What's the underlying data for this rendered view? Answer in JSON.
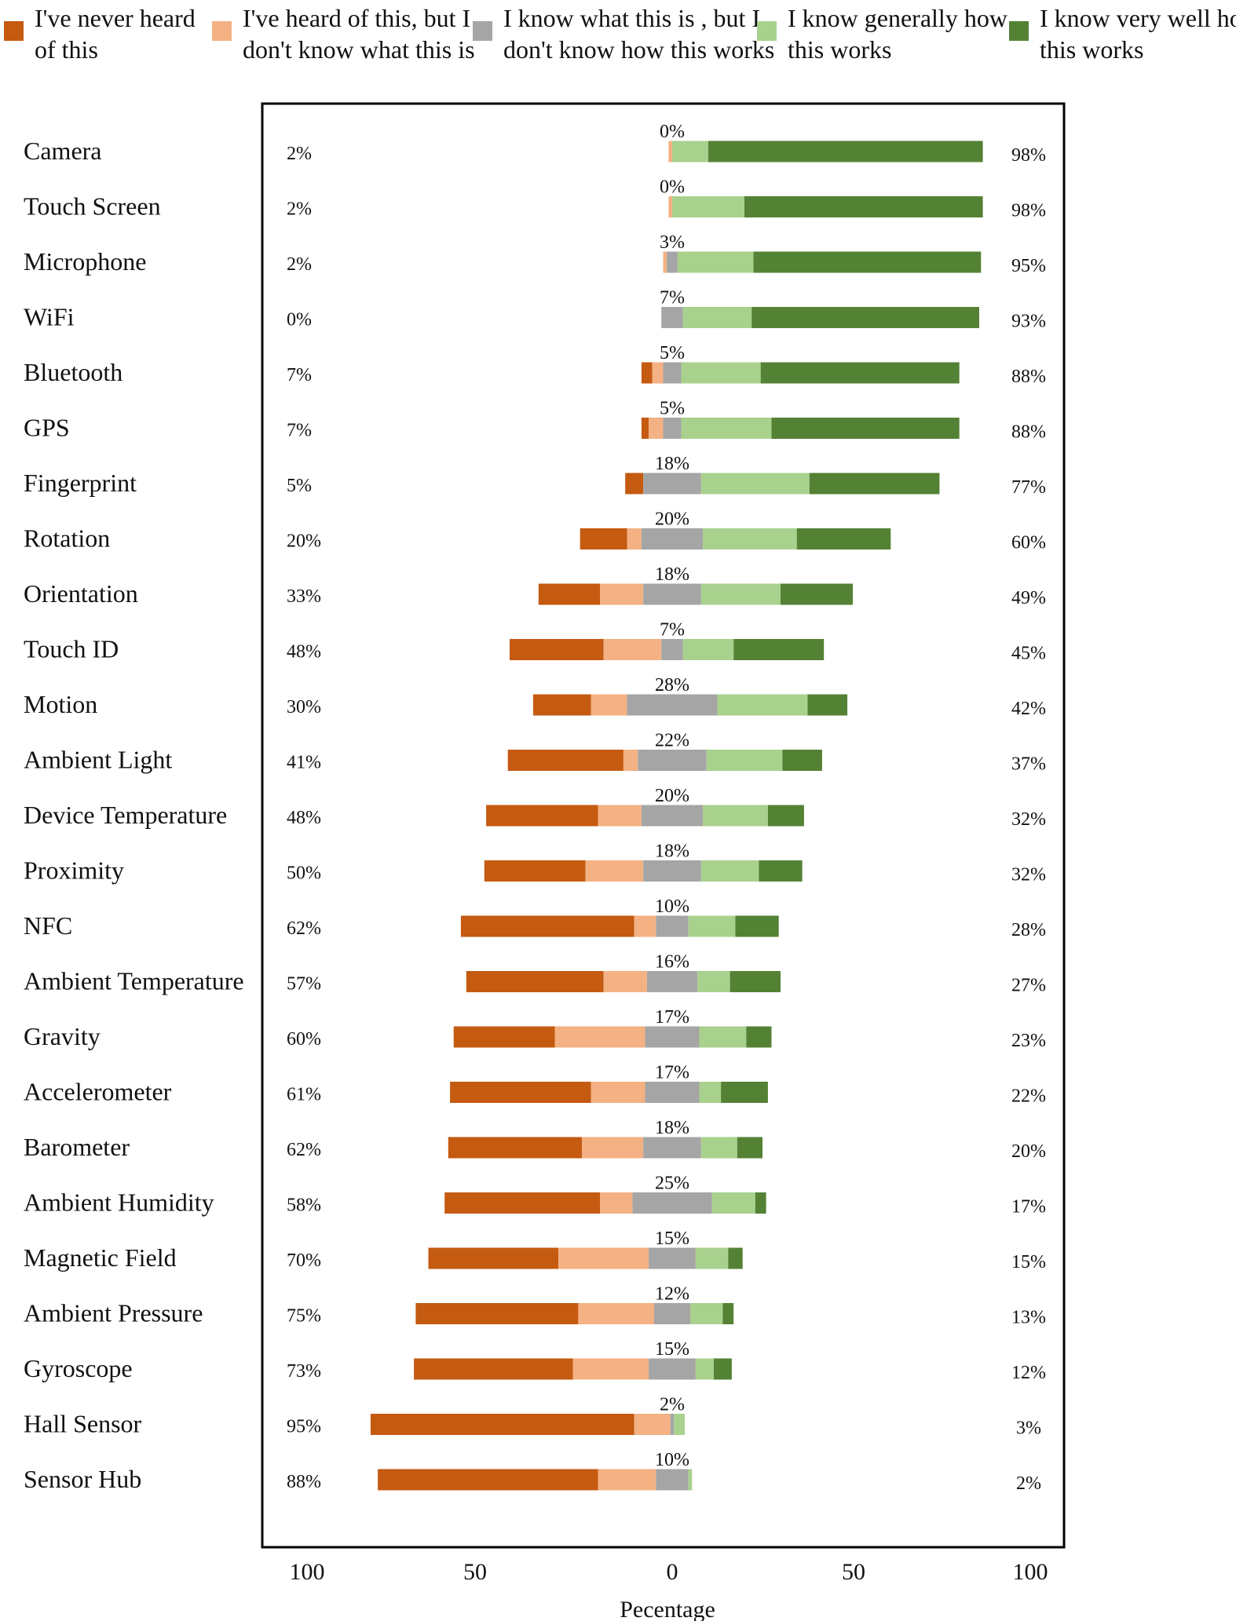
{
  "chart_data": {
    "type": "bar",
    "stacked": "diverging",
    "xlabel": "Pecentage",
    "x_tick_labels": [
      "100",
      "50",
      "0",
      "50",
      "100"
    ],
    "xlim": [
      -100,
      100
    ],
    "legend_position": "top",
    "series": [
      {
        "name": "I've never heard of this",
        "color": "#C55A11"
      },
      {
        "name": "I've heard of this, but I don't know what this is",
        "color": "#F4B183"
      },
      {
        "name": "I know what this is , but I don't know how this works",
        "color": "#A5A5A5"
      },
      {
        "name": "I know generally how this works",
        "color": "#A9D18E"
      },
      {
        "name": "I know very well how this works",
        "color": "#548235"
      }
    ],
    "categories": [
      {
        "label": "Camera",
        "values": [
          0,
          1,
          0,
          10,
          76
        ],
        "left_label": "2%",
        "neutral_label": "0%",
        "right_label": "98%"
      },
      {
        "label": "Touch Screen",
        "values": [
          0,
          1,
          0,
          20,
          66
        ],
        "left_label": "2%",
        "neutral_label": "0%",
        "right_label": "98%"
      },
      {
        "label": "Microphone",
        "values": [
          0,
          1,
          3,
          21,
          63
        ],
        "left_label": "2%",
        "neutral_label": "3%",
        "right_label": "95%"
      },
      {
        "label": "WiFi",
        "values": [
          0,
          0,
          6,
          19,
          63
        ],
        "left_label": "0%",
        "neutral_label": "7%",
        "right_label": "93%"
      },
      {
        "label": "Bluetooth",
        "values": [
          3,
          3,
          5,
          22,
          55
        ],
        "left_label": "7%",
        "neutral_label": "5%",
        "right_label": "88%"
      },
      {
        "label": "GPS",
        "values": [
          2,
          4,
          5,
          25,
          52
        ],
        "left_label": "7%",
        "neutral_label": "5%",
        "right_label": "88%"
      },
      {
        "label": "Fingerprint",
        "values": [
          5,
          0,
          16,
          30,
          36
        ],
        "left_label": "5%",
        "neutral_label": "18%",
        "right_label": "77%"
      },
      {
        "label": "Rotation",
        "values": [
          13,
          4,
          17,
          26,
          26
        ],
        "left_label": "20%",
        "neutral_label": "20%",
        "right_label": "60%"
      },
      {
        "label": "Orientation",
        "values": [
          17,
          12,
          16,
          22,
          20
        ],
        "left_label": "33%",
        "neutral_label": "18%",
        "right_label": "49%"
      },
      {
        "label": "Touch ID",
        "values": [
          26,
          16,
          6,
          14,
          25
        ],
        "left_label": "48%",
        "neutral_label": "7%",
        "right_label": "45%"
      },
      {
        "label": "Motion",
        "values": [
          16,
          10,
          25,
          25,
          11
        ],
        "left_label": "30%",
        "neutral_label": "28%",
        "right_label": "42%"
      },
      {
        "label": "Ambient Light",
        "values": [
          32,
          4,
          19,
          21,
          11
        ],
        "left_label": "41%",
        "neutral_label": "22%",
        "right_label": "37%"
      },
      {
        "label": "Device Temperature",
        "values": [
          31,
          12,
          17,
          18,
          10
        ],
        "left_label": "48%",
        "neutral_label": "20%",
        "right_label": "32%"
      },
      {
        "label": "Proximity",
        "values": [
          28,
          16,
          16,
          16,
          12
        ],
        "left_label": "50%",
        "neutral_label": "18%",
        "right_label": "32%"
      },
      {
        "label": "NFC",
        "values": [
          48,
          6,
          9,
          13,
          12
        ],
        "left_label": "62%",
        "neutral_label": "10%",
        "right_label": "28%"
      },
      {
        "label": "Ambient Temperature",
        "values": [
          38,
          12,
          14,
          9,
          14
        ],
        "left_label": "57%",
        "neutral_label": "16%",
        "right_label": "27%"
      },
      {
        "label": "Gravity",
        "values": [
          28,
          25,
          15,
          13,
          7
        ],
        "left_label": "60%",
        "neutral_label": "17%",
        "right_label": "23%"
      },
      {
        "label": "Accelerometer",
        "values": [
          39,
          15,
          15,
          6,
          13
        ],
        "left_label": "61%",
        "neutral_label": "17%",
        "right_label": "22%"
      },
      {
        "label": "Barometer",
        "values": [
          37,
          17,
          16,
          10,
          7
        ],
        "left_label": "62%",
        "neutral_label": "18%",
        "right_label": "20%"
      },
      {
        "label": "Ambient Humidity",
        "values": [
          43,
          9,
          22,
          12,
          3
        ],
        "left_label": "58%",
        "neutral_label": "25%",
        "right_label": "17%"
      },
      {
        "label": "Magnetic Field",
        "values": [
          36,
          25,
          13,
          9,
          4
        ],
        "left_label": "70%",
        "neutral_label": "15%",
        "right_label": "15%"
      },
      {
        "label": "Ambient Pressure",
        "values": [
          45,
          21,
          10,
          9,
          3
        ],
        "left_label": "75%",
        "neutral_label": "12%",
        "right_label": "13%"
      },
      {
        "label": "Gyroscope",
        "values": [
          44,
          21,
          13,
          5,
          5
        ],
        "left_label": "73%",
        "neutral_label": "15%",
        "right_label": "12%"
      },
      {
        "label": "Hall Sensor",
        "values": [
          73,
          10,
          1,
          3,
          0
        ],
        "left_label": "95%",
        "neutral_label": "2%",
        "right_label": "3%"
      },
      {
        "label": "Sensor  Hub",
        "values": [
          61,
          16,
          9,
          1,
          0
        ],
        "left_label": "88%",
        "neutral_label": "10%",
        "right_label": "2%"
      }
    ]
  }
}
